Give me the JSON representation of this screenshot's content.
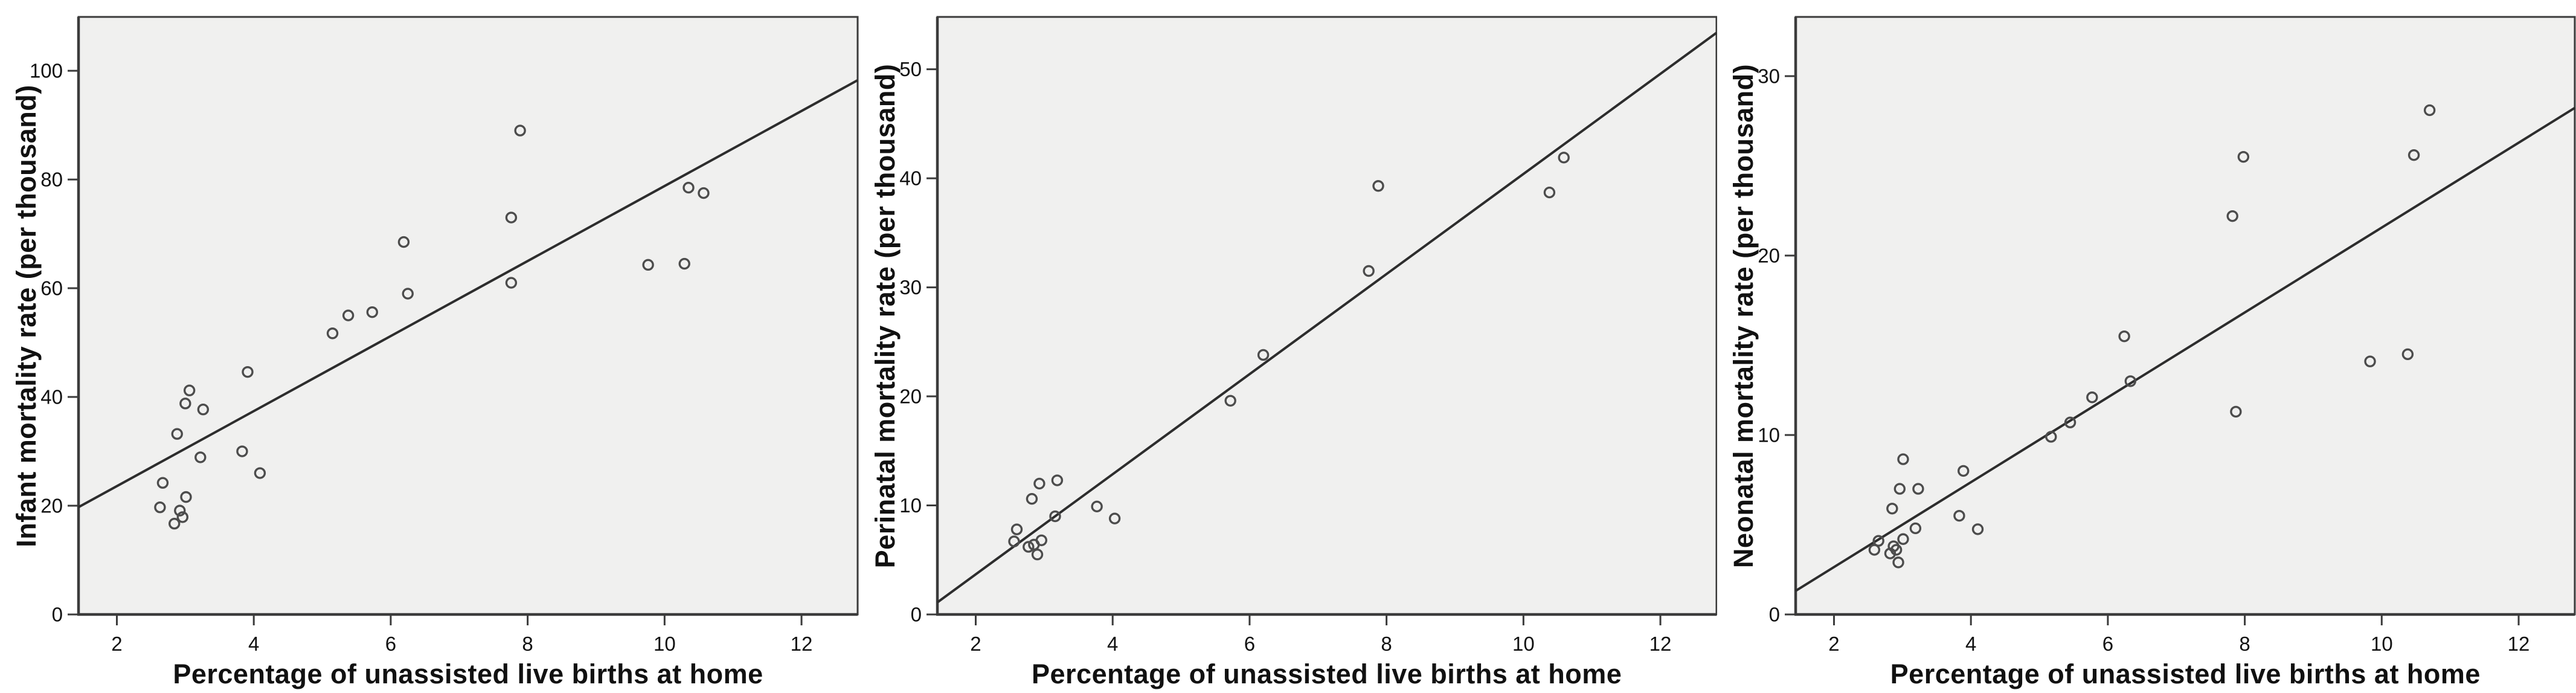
{
  "colors": {
    "page_bg": "#ffffff",
    "plot_bg": "#f0f0ef",
    "frame": "#3b3b3b",
    "fit_line": "#2d2d2d",
    "marker_stroke": "#4c4c4c",
    "text": "#111111"
  },
  "marker": {
    "shape": "open-circle",
    "radius": 8,
    "stroke_width": 3.4
  },
  "chart_data": [
    {
      "type": "scatter",
      "xlabel": "Percentage of unassisted live births at home",
      "ylabel": "Infant mortality rate (per thousand)",
      "xlim": [
        1.44,
        12.82
      ],
      "ylim": [
        0,
        109.9
      ],
      "xticks": [
        2,
        4,
        6,
        8,
        10,
        12
      ],
      "yticks": [
        0,
        20,
        40,
        60,
        80,
        100
      ],
      "grid": false,
      "legend": false,
      "fit_line": {
        "slope": 6.9,
        "intercept": 9.8
      },
      "points": [
        [
          2.63,
          19.7
        ],
        [
          2.67,
          24.2
        ],
        [
          2.84,
          16.7
        ],
        [
          2.88,
          33.2
        ],
        [
          2.92,
          19.1
        ],
        [
          2.96,
          17.9
        ],
        [
          3.0,
          38.8
        ],
        [
          3.01,
          21.6
        ],
        [
          3.06,
          41.2
        ],
        [
          3.22,
          28.9
        ],
        [
          3.26,
          37.7
        ],
        [
          3.83,
          30.0
        ],
        [
          3.91,
          44.6
        ],
        [
          4.09,
          26.0
        ],
        [
          5.15,
          51.7
        ],
        [
          5.38,
          55.0
        ],
        [
          5.73,
          55.6
        ],
        [
          6.19,
          68.5
        ],
        [
          6.25,
          59.0
        ],
        [
          7.76,
          61.0
        ],
        [
          7.76,
          73.0
        ],
        [
          7.89,
          89.0
        ],
        [
          9.76,
          64.3
        ],
        [
          10.29,
          64.5
        ],
        [
          10.35,
          78.5
        ],
        [
          10.57,
          77.5
        ]
      ]
    },
    {
      "type": "scatter",
      "xlabel": "Percentage of unassisted live births at home",
      "ylabel": "Perinatal mortality rate (per thousand)",
      "xlim": [
        1.44,
        12.82
      ],
      "ylim": [
        0,
        54.8
      ],
      "xticks": [
        2,
        4,
        6,
        8,
        10,
        12
      ],
      "yticks": [
        0,
        10,
        20,
        30,
        40,
        50
      ],
      "grid": false,
      "legend": false,
      "fit_line": {
        "slope": 4.59,
        "intercept": -5.5
      },
      "points": [
        [
          2.56,
          6.7
        ],
        [
          2.6,
          7.8
        ],
        [
          2.77,
          6.2
        ],
        [
          2.82,
          10.6
        ],
        [
          2.85,
          6.4
        ],
        [
          2.9,
          5.5
        ],
        [
          2.93,
          12.0
        ],
        [
          2.96,
          6.8
        ],
        [
          3.16,
          9.0
        ],
        [
          3.19,
          12.3
        ],
        [
          3.77,
          9.9
        ],
        [
          4.03,
          8.8
        ],
        [
          5.72,
          19.6
        ],
        [
          6.2,
          23.8
        ],
        [
          7.74,
          31.5
        ],
        [
          7.88,
          39.3
        ],
        [
          10.38,
          38.7
        ],
        [
          10.59,
          41.9
        ]
      ]
    },
    {
      "type": "scatter",
      "xlabel": "Percentage of unassisted live births at home",
      "ylabel": "Neonatal mortality rate (per thousand)",
      "xlim": [
        1.44,
        12.82
      ],
      "ylim": [
        0,
        33.3
      ],
      "xticks": [
        2,
        4,
        6,
        8,
        10,
        12
      ],
      "yticks": [
        0,
        10,
        20,
        30
      ],
      "grid": false,
      "legend": false,
      "fit_line": {
        "slope": 2.365,
        "intercept": -2.09
      },
      "points": [
        [
          2.59,
          3.6
        ],
        [
          2.65,
          4.1
        ],
        [
          2.82,
          3.4
        ],
        [
          2.85,
          5.9
        ],
        [
          2.87,
          3.8
        ],
        [
          2.91,
          3.6
        ],
        [
          2.94,
          2.9
        ],
        [
          2.96,
          7.0
        ],
        [
          3.01,
          4.2
        ],
        [
          3.01,
          8.65
        ],
        [
          3.19,
          4.8
        ],
        [
          3.23,
          7.0
        ],
        [
          3.83,
          5.5
        ],
        [
          3.89,
          8.0
        ],
        [
          4.1,
          4.75
        ],
        [
          5.17,
          9.9
        ],
        [
          5.45,
          10.7
        ],
        [
          5.77,
          12.1
        ],
        [
          6.24,
          15.5
        ],
        [
          6.33,
          13.0
        ],
        [
          7.82,
          22.2
        ],
        [
          7.87,
          11.3
        ],
        [
          7.98,
          25.5
        ],
        [
          9.83,
          14.1
        ],
        [
          10.38,
          14.5
        ],
        [
          10.47,
          25.6
        ],
        [
          10.7,
          28.1
        ]
      ]
    }
  ]
}
